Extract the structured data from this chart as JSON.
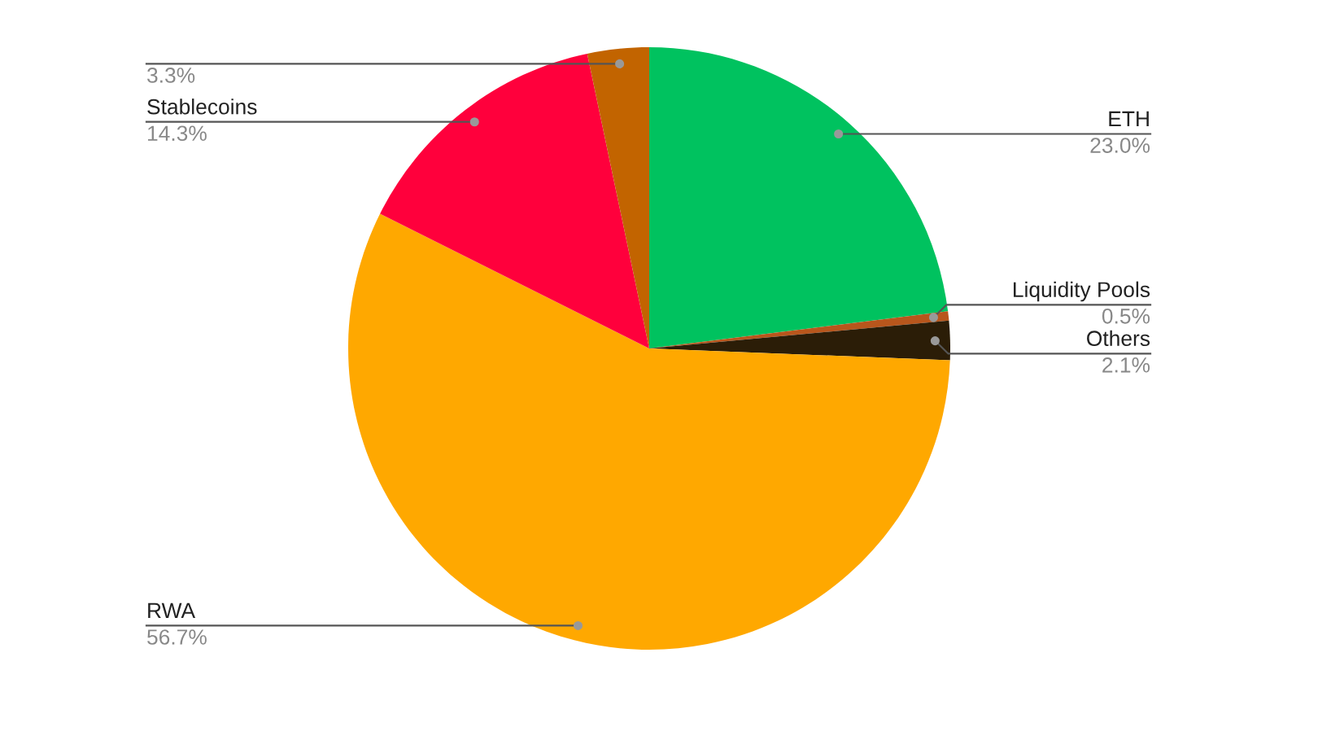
{
  "chart_data": {
    "type": "pie",
    "categories": [
      "ETH",
      "Liquidity Pools",
      "Others",
      "RWA",
      "Stablecoins",
      null
    ],
    "values": [
      23.0,
      0.5,
      2.1,
      56.7,
      14.3,
      3.3
    ],
    "value_labels": [
      "23.0%",
      "0.5%",
      "2.1%",
      "56.7%",
      "14.3%",
      "3.3%"
    ],
    "colors": [
      "#00c25f",
      "#b8561c",
      "#2b1d07",
      "#ffa800",
      "#ff003c",
      "#c26400"
    ],
    "legend": false
  }
}
